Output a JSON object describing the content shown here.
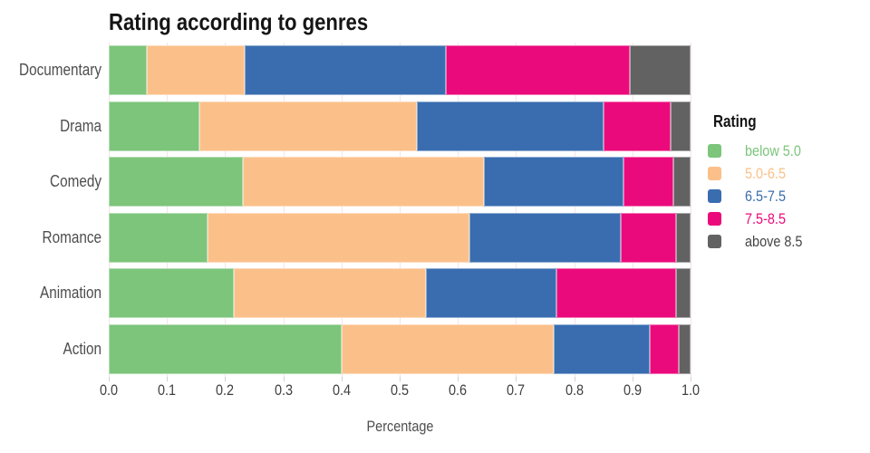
{
  "chart_data": {
    "type": "bar",
    "orientation": "horizontal",
    "stacked": true,
    "title": "Rating according to genres",
    "xlabel": "Percentage",
    "legend_title": "Rating",
    "legend_position": "right",
    "grid": "vertical gridlines, light pink, every 0.1",
    "xlim": [
      0.0,
      1.0
    ],
    "x_ticks": [
      "0.0",
      "0.1",
      "0.2",
      "0.3",
      "0.4",
      "0.5",
      "0.6",
      "0.7",
      "0.8",
      "0.9",
      "1.0"
    ],
    "categories": [
      "Documentary",
      "Drama",
      "Comedy",
      "Romance",
      "Animation",
      "Action"
    ],
    "series": [
      {
        "name": "below 5.0",
        "color": "#7cc57b",
        "label_color": "#7cc57b",
        "values": [
          0.066,
          0.155,
          0.23,
          0.17,
          0.215,
          0.4
        ]
      },
      {
        "name": "5.0-6.5",
        "color": "#fbc08a",
        "label_color": "#fbc08a",
        "values": [
          0.168,
          0.375,
          0.415,
          0.45,
          0.33,
          0.365
        ]
      },
      {
        "name": "6.5-7.5",
        "color": "#3a6db0",
        "label_color": "#3a6db0",
        "values": [
          0.346,
          0.32,
          0.24,
          0.26,
          0.225,
          0.165
        ]
      },
      {
        "name": "7.5-8.5",
        "color": "#eb0a7c",
        "label_color": "#eb0a7c",
        "values": [
          0.315,
          0.115,
          0.085,
          0.095,
          0.205,
          0.05
        ]
      },
      {
        "name": "above 8.5",
        "color": "#626262",
        "label_color": "#454545",
        "values": [
          0.105,
          0.035,
          0.03,
          0.025,
          0.025,
          0.02
        ]
      }
    ],
    "colors": {
      "background": "#ffffff",
      "gridline": "#f7e2e7",
      "title_text": "#151515",
      "axis_text": "#3f3f3f",
      "category_text": "#4e4e4e"
    }
  }
}
